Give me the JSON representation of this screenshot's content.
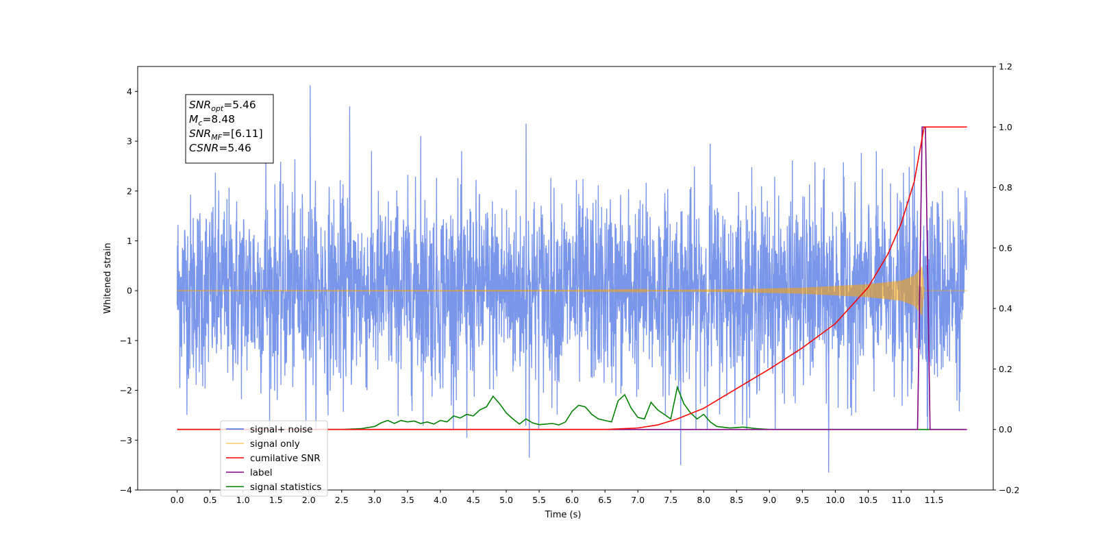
{
  "chart_data": {
    "type": "line",
    "xlabel": "Time (s)",
    "ylabel": "Whitened strain",
    "xlim": [
      -0.6,
      12.4
    ],
    "ylim": [
      -4,
      4.5
    ],
    "y2lim": [
      -0.2,
      1.2
    ],
    "x_ticks": [
      0.0,
      0.5,
      1.0,
      1.5,
      2.0,
      2.5,
      3.0,
      3.5,
      4.0,
      4.5,
      5.0,
      5.5,
      6.0,
      6.5,
      7.0,
      7.5,
      8.0,
      8.5,
      9.0,
      9.5,
      10.0,
      10.5,
      11.0,
      11.5
    ],
    "x_tick_labels": [
      "0.0",
      "0.5",
      "1.0",
      "1.5",
      "2.0",
      "2.5",
      "3.0",
      "3.5",
      "4.0",
      "4.5",
      "5.0",
      "5.5",
      "6.0",
      "6.5",
      "7.0",
      "7.5",
      "8.0",
      "8.5",
      "9.0",
      "9.5",
      "10.0",
      "10.5",
      "11.0",
      "11.5"
    ],
    "y_ticks": [
      -4,
      -3,
      -2,
      -1,
      0,
      1,
      2,
      3,
      4
    ],
    "y_tick_labels": [
      "−4",
      "−3",
      "−2",
      "−1",
      "0",
      "1",
      "2",
      "3",
      "4"
    ],
    "y2_ticks": [
      -0.2,
      0.0,
      0.2,
      0.4,
      0.6,
      0.8,
      1.0,
      1.2
    ],
    "y2_tick_labels": [
      "−0.2",
      "0.0",
      "0.2",
      "0.4",
      "0.6",
      "0.8",
      "1.0",
      "1.2"
    ],
    "grid": false,
    "legend_position": "lower-left",
    "annotation": {
      "lines": [
        {
          "sym": "SNR",
          "sub": "opt",
          "value": "=5.46"
        },
        {
          "sym": "M",
          "sub": "c",
          "value": "=8.48"
        },
        {
          "sym": "SNR",
          "sub": "MF",
          "value": "=[6.11]"
        },
        {
          "sym": "CSNR",
          "sub": "",
          "value": "=5.46"
        }
      ]
    },
    "series": [
      {
        "name": "signal+ noise",
        "color": "#4169e1",
        "axis": "left",
        "x_range": [
          0.0,
          12.0
        ],
        "noise_sigma": 0.95,
        "spikes": [
          {
            "x": 2.02,
            "y": 4.12
          },
          {
            "x": 2.62,
            "y": 3.7
          },
          {
            "x": 1.35,
            "y": 3.1
          },
          {
            "x": 3.7,
            "y": 3.1
          },
          {
            "x": 5.3,
            "y": 3.35
          },
          {
            "x": 8.1,
            "y": 2.95
          },
          {
            "x": 11.2,
            "y": 2.9
          },
          {
            "x": 9.9,
            "y": -3.65
          },
          {
            "x": 7.65,
            "y": -3.5
          },
          {
            "x": 5.35,
            "y": -3.35
          },
          {
            "x": 4.4,
            "y": -2.95
          },
          {
            "x": 8.7,
            "y": -2.55
          }
        ]
      },
      {
        "name": "signal only",
        "color": "#ffa500",
        "axis": "left",
        "x_range": [
          0.0,
          12.0
        ],
        "envelope": [
          [
            0.0,
            0.003
          ],
          [
            6.0,
            0.006
          ],
          [
            7.5,
            0.015
          ],
          [
            8.5,
            0.03
          ],
          [
            9.5,
            0.06
          ],
          [
            10.5,
            0.13
          ],
          [
            11.0,
            0.2
          ],
          [
            11.2,
            0.3
          ],
          [
            11.32,
            0.5
          ],
          [
            11.35,
            0.0
          ],
          [
            12.0,
            0.0
          ]
        ]
      },
      {
        "name": "cumilative SNR",
        "color": "#ff0000",
        "axis": "right",
        "x": [
          0.0,
          6.5,
          7.0,
          7.3,
          7.6,
          8.0,
          8.5,
          9.0,
          9.5,
          10.0,
          10.5,
          10.8,
          11.0,
          11.2,
          11.3,
          11.35,
          12.0
        ],
        "values": [
          0.0,
          0.0,
          0.005,
          0.015,
          0.035,
          0.07,
          0.135,
          0.2,
          0.27,
          0.35,
          0.47,
          0.58,
          0.68,
          0.82,
          0.94,
          1.0,
          1.0
        ]
      },
      {
        "name": "label",
        "color": "#800080",
        "axis": "right",
        "x": [
          0.0,
          11.25,
          11.32,
          11.37,
          11.44,
          12.0
        ],
        "values": [
          0.0,
          0.0,
          1.0,
          1.0,
          0.0,
          0.0
        ]
      },
      {
        "name": "signal statistics",
        "color": "#008000",
        "axis": "right",
        "x": [
          0.0,
          2.5,
          2.8,
          3.0,
          3.1,
          3.2,
          3.3,
          3.4,
          3.5,
          3.6,
          3.7,
          3.8,
          3.9,
          4.0,
          4.1,
          4.2,
          4.3,
          4.4,
          4.5,
          4.6,
          4.7,
          4.8,
          4.9,
          5.0,
          5.1,
          5.2,
          5.3,
          5.4,
          5.5,
          5.6,
          5.7,
          5.8,
          5.9,
          6.0,
          6.1,
          6.2,
          6.3,
          6.4,
          6.5,
          6.6,
          6.7,
          6.8,
          6.9,
          7.0,
          7.1,
          7.2,
          7.3,
          7.4,
          7.5,
          7.6,
          7.7,
          7.8,
          7.9,
          8.0,
          8.1,
          8.2,
          8.4,
          8.6,
          8.8,
          9.0,
          9.5,
          10.0,
          11.0,
          11.95
        ],
        "values": [
          0.0,
          0.0,
          0.003,
          0.01,
          0.022,
          0.03,
          0.02,
          0.03,
          0.025,
          0.028,
          0.02,
          0.025,
          0.018,
          0.03,
          0.025,
          0.045,
          0.038,
          0.05,
          0.045,
          0.065,
          0.075,
          0.11,
          0.085,
          0.055,
          0.035,
          0.018,
          0.035,
          0.022,
          0.016,
          0.018,
          0.02,
          0.015,
          0.025,
          0.06,
          0.08,
          0.075,
          0.05,
          0.035,
          0.03,
          0.025,
          0.095,
          0.115,
          0.07,
          0.04,
          0.035,
          0.09,
          0.065,
          0.05,
          0.035,
          0.14,
          0.085,
          0.055,
          0.035,
          0.05,
          0.025,
          0.01,
          0.005,
          0.008,
          0.003,
          0.0,
          0.0,
          0.0,
          0.0,
          0.0
        ]
      }
    ],
    "legend_entries": [
      {
        "label": "signal+ noise",
        "color": "#4169e1"
      },
      {
        "label": "signal only",
        "color": "#ffa500"
      },
      {
        "label": "cumilative SNR",
        "color": "#ff0000"
      },
      {
        "label": "label",
        "color": "#800080"
      },
      {
        "label": "signal statistics",
        "color": "#008000"
      }
    ]
  }
}
